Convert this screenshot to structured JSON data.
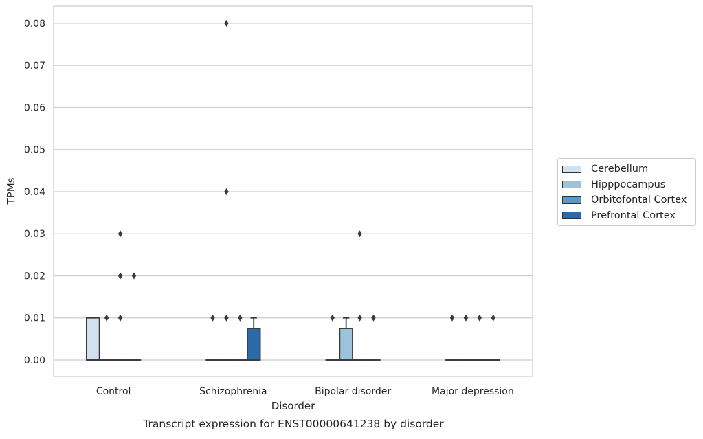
{
  "chart_data": {
    "type": "box",
    "title": "Transcript expression for ENST00000641238 by disorder",
    "xlabel": "Disorder",
    "ylabel": "TPMs",
    "ylim": [
      -0.004,
      0.084
    ],
    "yticks": [
      "0.00",
      "0.01",
      "0.02",
      "0.03",
      "0.04",
      "0.05",
      "0.06",
      "0.07",
      "0.08"
    ],
    "grid": true,
    "legend_position": "right",
    "categories": [
      "Control",
      "Schizophrenia",
      "Bipolar disorder",
      "Major depression"
    ],
    "series": [
      {
        "name": "Cerebellum",
        "color": "#d2e1f0",
        "boxes": [
          {
            "q1": 0.0,
            "median": 0.0,
            "q3": 0.01,
            "whisker_low": 0.0,
            "whisker_high": 0.01,
            "outliers": []
          },
          {
            "q1": 0.0,
            "median": 0.0,
            "q3": 0.0,
            "whisker_low": 0.0,
            "whisker_high": 0.0,
            "outliers": [
              0.01
            ]
          },
          {
            "q1": 0.0,
            "median": 0.0,
            "q3": 0.0,
            "whisker_low": 0.0,
            "whisker_high": 0.0,
            "outliers": [
              0.01
            ]
          },
          {
            "q1": 0.0,
            "median": 0.0,
            "q3": 0.0,
            "whisker_low": 0.0,
            "whisker_high": 0.0,
            "outliers": [
              0.01
            ]
          }
        ]
      },
      {
        "name": "Hipppocampus",
        "color": "#9cc3da",
        "boxes": [
          {
            "q1": 0.0,
            "median": 0.0,
            "q3": 0.0,
            "whisker_low": 0.0,
            "whisker_high": 0.0,
            "outliers": [
              0.01
            ]
          },
          {
            "q1": 0.0,
            "median": 0.0,
            "q3": 0.0,
            "whisker_low": 0.0,
            "whisker_high": 0.0,
            "outliers": [
              0.01,
              0.04,
              0.08
            ]
          },
          {
            "q1": 0.0,
            "median": 0.0,
            "q3": 0.0075,
            "whisker_low": 0.0,
            "whisker_high": 0.01,
            "outliers": []
          },
          {
            "q1": 0.0,
            "median": 0.0,
            "q3": 0.0,
            "whisker_low": 0.0,
            "whisker_high": 0.0,
            "outliers": [
              0.01
            ]
          }
        ]
      },
      {
        "name": "Orbitofontal Cortex",
        "color": "#5a9ac6",
        "boxes": [
          {
            "q1": 0.0,
            "median": 0.0,
            "q3": 0.0,
            "whisker_low": 0.0,
            "whisker_high": 0.0,
            "outliers": [
              0.01,
              0.02,
              0.03
            ]
          },
          {
            "q1": 0.0,
            "median": 0.0,
            "q3": 0.0,
            "whisker_low": 0.0,
            "whisker_high": 0.0,
            "outliers": [
              0.01
            ]
          },
          {
            "q1": 0.0,
            "median": 0.0,
            "q3": 0.0,
            "whisker_low": 0.0,
            "whisker_high": 0.0,
            "outliers": [
              0.01,
              0.03
            ]
          },
          {
            "q1": 0.0,
            "median": 0.0,
            "q3": 0.0,
            "whisker_low": 0.0,
            "whisker_high": 0.0,
            "outliers": [
              0.01
            ]
          }
        ]
      },
      {
        "name": "Prefrontal Cortex",
        "color": "#2a6aa8",
        "boxes": [
          {
            "q1": 0.0,
            "median": 0.0,
            "q3": 0.0,
            "whisker_low": 0.0,
            "whisker_high": 0.0,
            "outliers": [
              0.02
            ]
          },
          {
            "q1": 0.0,
            "median": 0.0,
            "q3": 0.0075,
            "whisker_low": 0.0,
            "whisker_high": 0.01,
            "outliers": []
          },
          {
            "q1": 0.0,
            "median": 0.0,
            "q3": 0.0,
            "whisker_low": 0.0,
            "whisker_high": 0.0,
            "outliers": [
              0.01
            ]
          },
          {
            "q1": 0.0,
            "median": 0.0,
            "q3": 0.0,
            "whisker_low": 0.0,
            "whisker_high": 0.0,
            "outliers": [
              0.01
            ]
          }
        ]
      }
    ]
  }
}
